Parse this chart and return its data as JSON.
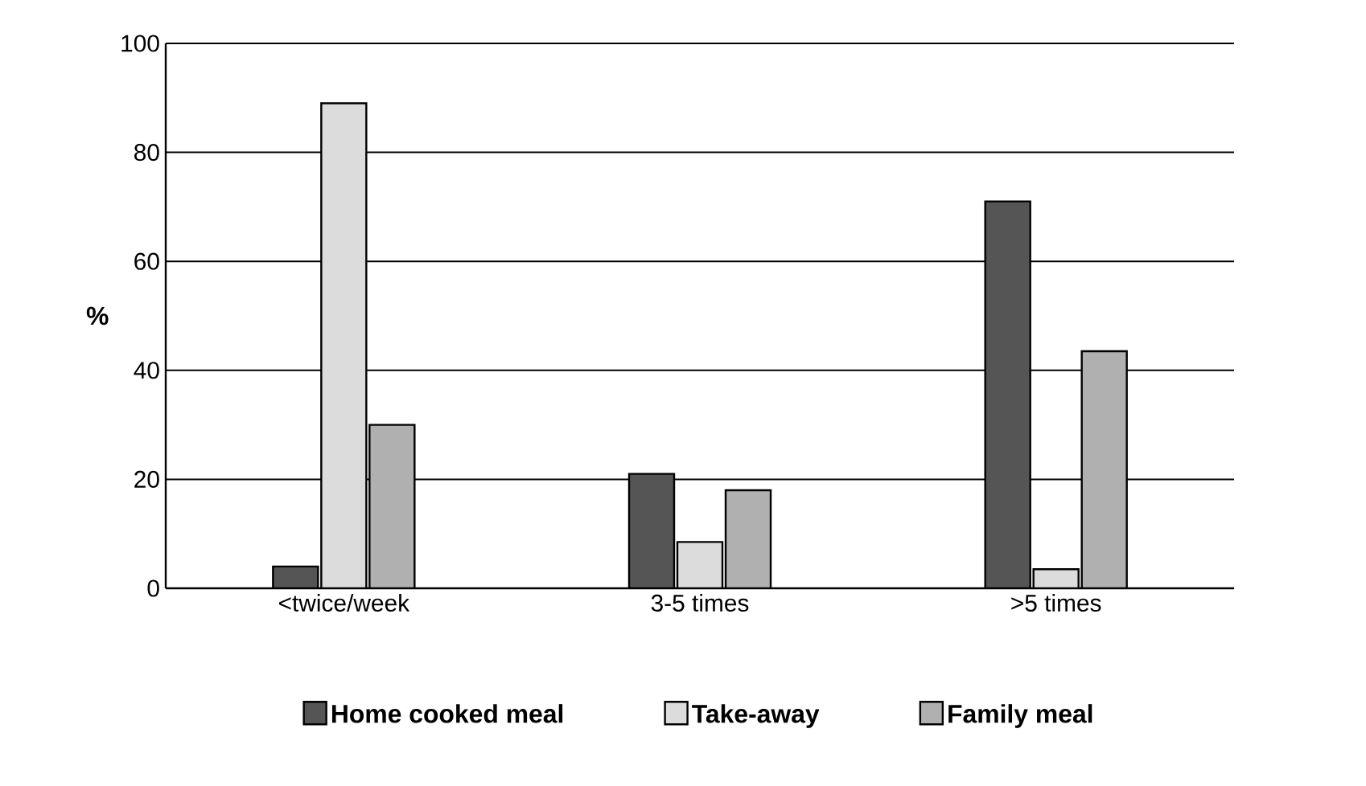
{
  "chart_data": {
    "type": "bar",
    "ylabel": "%",
    "categories": [
      "<twice/week",
      "3-5 times",
      ">5 times"
    ],
    "series": [
      {
        "name": "Home cooked meal",
        "color": "#555555",
        "values": [
          4,
          21,
          71
        ]
      },
      {
        "name": "Take-away",
        "color": "#dcdcdc",
        "values": [
          89,
          8.5,
          3.5
        ]
      },
      {
        "name": "Family meal",
        "color": "#b0b0b0",
        "values": [
          30,
          18,
          43.5
        ]
      }
    ],
    "ylim": [
      0,
      100
    ],
    "yticks": [
      0,
      20,
      40,
      60,
      80,
      100
    ],
    "grid": "y",
    "legend": "bottom"
  }
}
